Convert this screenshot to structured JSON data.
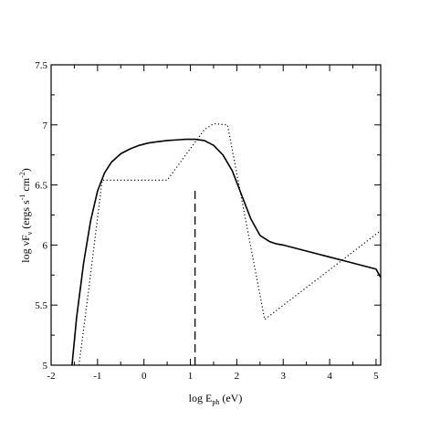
{
  "chart_data": {
    "type": "line",
    "xlabel": {
      "main": "log E",
      "sub": "ph",
      "rest": " (eV)"
    },
    "ylabel": {
      "p1": "log νF",
      "sub": "ν",
      "p2": " (ergs s",
      "sup1": "-1",
      "p3": " cm",
      "sup2": "-2",
      "p4": ")"
    },
    "xlim": [
      -2,
      5.1
    ],
    "ylim": [
      5,
      7.5
    ],
    "x_ticks": [
      -2,
      -1,
      0,
      1,
      2,
      3,
      4,
      5
    ],
    "y_ticks": [
      5,
      5.5,
      6,
      6.5,
      7,
      7.5
    ],
    "x_tick_labels": [
      "-2",
      "-1",
      "0",
      "1",
      "2",
      "3",
      "4",
      "5"
    ],
    "y_tick_labels": [
      "5",
      "5.5",
      "6",
      "6.5",
      "7",
      "7.5"
    ],
    "grid": false,
    "series": [
      {
        "style": "solid",
        "x": [
          -1.55,
          -1.45,
          -1.3,
          -1.15,
          -1.0,
          -0.85,
          -0.7,
          -0.5,
          -0.3,
          -0.1,
          0.1,
          0.3,
          0.5,
          0.7,
          0.9,
          1.1,
          1.3,
          1.5,
          1.7,
          1.9,
          2.1,
          2.3,
          2.5,
          2.7,
          2.85,
          3.0,
          3.5,
          4.0,
          4.5,
          5.0,
          5.1
        ],
        "y": [
          5.0,
          5.4,
          5.85,
          6.2,
          6.45,
          6.6,
          6.69,
          6.76,
          6.8,
          6.83,
          6.85,
          6.86,
          6.87,
          6.875,
          6.88,
          6.88,
          6.87,
          6.83,
          6.75,
          6.62,
          6.42,
          6.22,
          6.08,
          6.03,
          6.01,
          6.0,
          5.95,
          5.9,
          5.85,
          5.8,
          5.73
        ]
      },
      {
        "style": "dotted",
        "x": [
          -1.4,
          -1.2,
          -0.9,
          0.5,
          1.3,
          1.5,
          1.8,
          2.6,
          5.1
        ],
        "y": [
          5.0,
          5.6,
          6.54,
          6.54,
          6.96,
          7.01,
          7.0,
          5.38,
          6.12
        ]
      },
      {
        "style": "dashed",
        "x": [
          1.1,
          1.1
        ],
        "y": [
          5.0,
          6.48
        ]
      }
    ]
  }
}
